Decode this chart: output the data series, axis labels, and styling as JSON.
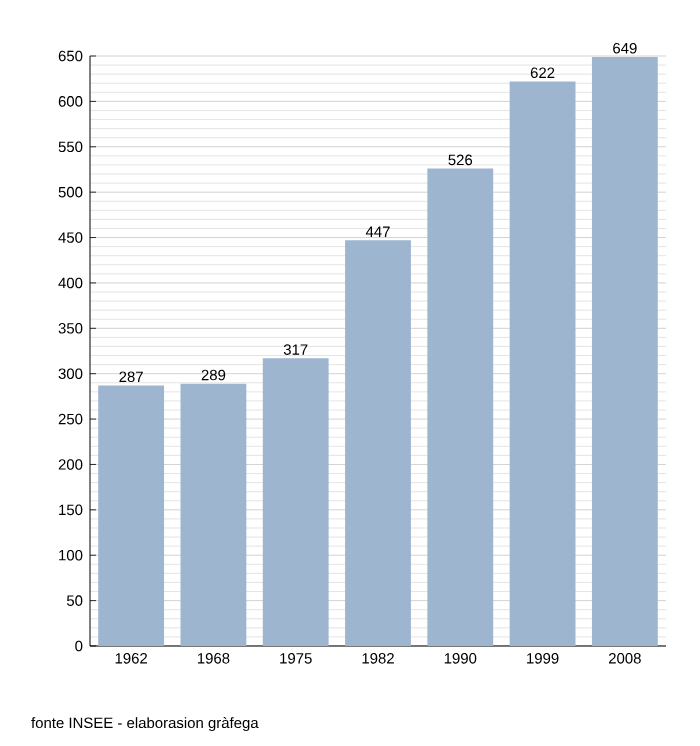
{
  "chart_data": {
    "type": "bar",
    "categories": [
      "1962",
      "1968",
      "1975",
      "1982",
      "1990",
      "1999",
      "2008"
    ],
    "values": [
      287,
      289,
      317,
      447,
      526,
      622,
      649
    ],
    "color": "#9db5cf",
    "ylim": [
      0,
      650
    ],
    "yticks": [
      0,
      50,
      100,
      150,
      200,
      250,
      300,
      350,
      400,
      450,
      500,
      550,
      600,
      650
    ],
    "grid": "y",
    "data_labels": true,
    "annotations": [
      "fonte INSEE - elaborasion gràfega"
    ]
  }
}
